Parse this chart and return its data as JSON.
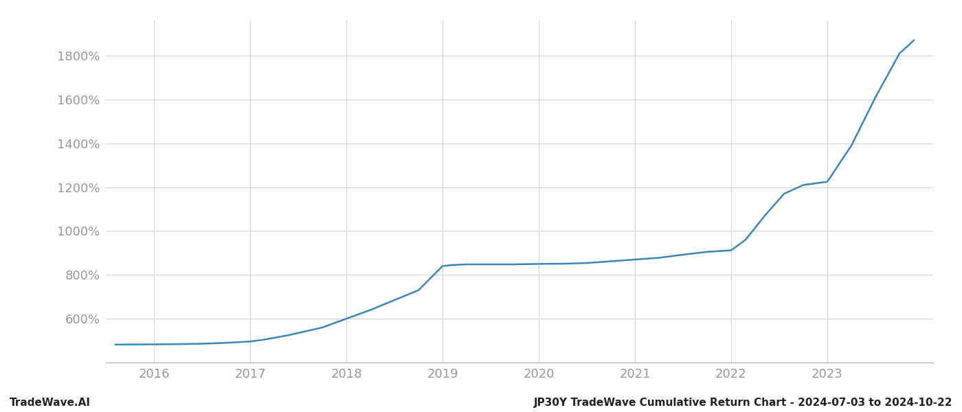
{
  "x_values": [
    2015.6,
    2016.0,
    2016.25,
    2016.5,
    2016.75,
    2017.0,
    2017.15,
    2017.4,
    2017.75,
    2018.0,
    2018.25,
    2018.5,
    2018.75,
    2019.0,
    2019.1,
    2019.25,
    2019.5,
    2019.75,
    2020.0,
    2020.25,
    2020.5,
    2020.75,
    2021.0,
    2021.25,
    2021.5,
    2021.75,
    2022.0,
    2022.15,
    2022.35,
    2022.55,
    2022.75,
    2023.0,
    2023.25,
    2023.5,
    2023.75,
    2023.9
  ],
  "y_values": [
    482,
    483,
    484,
    486,
    490,
    496,
    505,
    525,
    560,
    600,
    640,
    685,
    730,
    840,
    845,
    848,
    848,
    848,
    850,
    851,
    854,
    862,
    870,
    878,
    892,
    905,
    912,
    960,
    1070,
    1170,
    1210,
    1225,
    1390,
    1610,
    1810,
    1870
  ],
  "line_color": "#3a87b8",
  "line_width": 1.8,
  "background_color": "#ffffff",
  "grid_color": "#d0d0d0",
  "ytick_labels": [
    "600%",
    "800%",
    "1000%",
    "1200%",
    "1400%",
    "1600%",
    "1800%"
  ],
  "ytick_values": [
    600,
    800,
    1000,
    1200,
    1400,
    1600,
    1800
  ],
  "xtick_values": [
    2016,
    2017,
    2018,
    2019,
    2020,
    2021,
    2022,
    2023
  ],
  "xtick_labels": [
    "2016",
    "2017",
    "2018",
    "2019",
    "2020",
    "2021",
    "2022",
    "2023"
  ],
  "ylim": [
    400,
    1960
  ],
  "xlim": [
    2015.5,
    2024.1
  ],
  "label_color": "#999999",
  "footer_left": "TradeWave.AI",
  "footer_right": "JP30Y TradeWave Cumulative Return Chart - 2024-07-03 to 2024-10-22",
  "footer_fontsize": 11,
  "tick_fontsize": 13
}
